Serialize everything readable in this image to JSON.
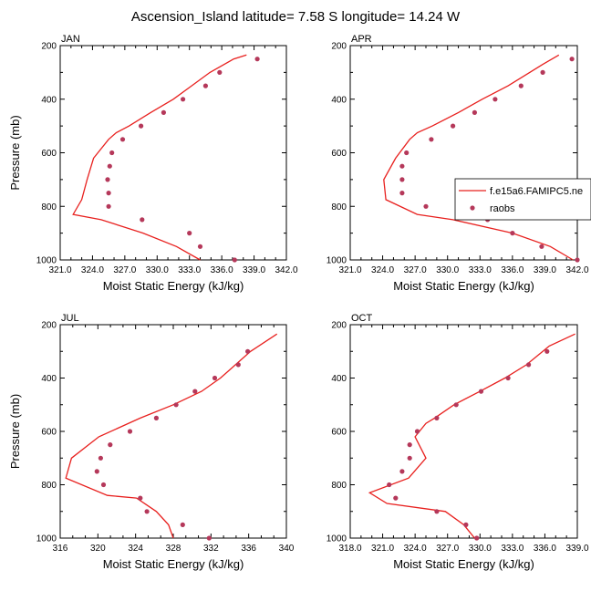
{
  "page": {
    "title": "Ascension_Island  latitude= 7.58 S longitude= 14.24 W"
  },
  "legend": {
    "model_label": "f.e15a6.FAMIPC5.ne",
    "obs_label": "raobs",
    "model_color": "#e8201e",
    "obs_color": "#b5385a"
  },
  "chart_data": [
    {
      "type": "line",
      "panel": "JAN",
      "xlabel": "Moist Static Energy (kJ/kg)",
      "ylabel": "Pressure (mb)",
      "xlim": [
        321.0,
        342.0
      ],
      "ylim": [
        200,
        1000
      ],
      "y_axis": "reversed",
      "x_ticks": [
        "321.0",
        "324.0",
        "327.0",
        "330.0",
        "333.0",
        "336.0",
        "339.0",
        "342.0"
      ],
      "y_ticks": [
        "200",
        "400",
        "600",
        "800",
        "1000"
      ],
      "model": {
        "p": [
          1000,
          950,
          900,
          850,
          830,
          775,
          700,
          620,
          550,
          525,
          500,
          450,
          400,
          350,
          300,
          250,
          235
        ],
        "mse": [
          334.0,
          331.8,
          328.7,
          324.8,
          322.2,
          323.0,
          323.5,
          324.1,
          325.5,
          326.2,
          327.4,
          329.4,
          331.5,
          333.2,
          334.9,
          337.1,
          338.3
        ]
      },
      "raobs": {
        "p": [
          1000,
          950,
          900,
          850,
          800,
          750,
          700,
          650,
          600,
          550,
          500,
          450,
          400,
          350,
          300,
          250
        ],
        "mse": [
          337.2,
          334.0,
          333.0,
          328.6,
          325.5,
          325.5,
          325.4,
          325.6,
          325.8,
          326.8,
          328.5,
          330.6,
          332.4,
          334.5,
          335.8,
          339.3
        ]
      }
    },
    {
      "type": "line",
      "panel": "APR",
      "xlabel": "Moist Static Energy (kJ/kg)",
      "ylabel": "",
      "xlim": [
        321.0,
        342.0
      ],
      "ylim": [
        200,
        1000
      ],
      "y_axis": "reversed",
      "x_ticks": [
        "321.0",
        "324.0",
        "327.0",
        "330.0",
        "333.0",
        "336.0",
        "339.0",
        "342.0"
      ],
      "y_ticks": [
        "200",
        "400",
        "600",
        "800",
        "1000"
      ],
      "model": {
        "p": [
          1000,
          950,
          900,
          850,
          830,
          775,
          700,
          620,
          550,
          525,
          500,
          450,
          400,
          350,
          300,
          270,
          235
        ],
        "mse": [
          341.6,
          339.5,
          336.0,
          330.5,
          327.2,
          324.3,
          324.1,
          325.2,
          326.5,
          327.2,
          328.6,
          331.0,
          333.2,
          335.6,
          337.6,
          338.8,
          340.3
        ]
      },
      "raobs": {
        "p": [
          1000,
          950,
          900,
          850,
          800,
          750,
          700,
          650,
          600,
          550,
          500,
          450,
          400,
          350,
          300,
          250
        ],
        "mse": [
          342.0,
          338.7,
          336.0,
          333.7,
          328.0,
          325.8,
          325.8,
          325.8,
          326.2,
          328.5,
          330.5,
          332.5,
          334.4,
          336.8,
          338.8,
          341.5
        ]
      }
    },
    {
      "type": "line",
      "panel": "JUL",
      "xlabel": "Moist Static Energy (kJ/kg)",
      "ylabel": "Pressure (mb)",
      "xlim": [
        316,
        340
      ],
      "ylim": [
        200,
        1000
      ],
      "y_axis": "reversed",
      "x_ticks": [
        "316",
        "320",
        "324",
        "328",
        "332",
        "336",
        "340"
      ],
      "y_ticks": [
        "200",
        "400",
        "600",
        "800",
        "1000"
      ],
      "model": {
        "p": [
          1000,
          980,
          950,
          900,
          850,
          840,
          775,
          700,
          620,
          550,
          500,
          450,
          400,
          350,
          300,
          235
        ],
        "mse": [
          328.0,
          327.8,
          327.5,
          326.2,
          324.1,
          321.0,
          316.6,
          317.2,
          320.1,
          324.5,
          328.0,
          331.0,
          333.0,
          334.6,
          336.2,
          339.0
        ]
      },
      "raobs": {
        "p": [
          1000,
          950,
          900,
          850,
          800,
          750,
          700,
          650,
          600,
          550,
          500,
          450,
          400,
          350,
          300
        ],
        "mse": [
          331.8,
          329.0,
          325.2,
          324.5,
          320.6,
          319.9,
          320.3,
          321.3,
          323.4,
          326.2,
          328.3,
          330.3,
          332.4,
          334.9,
          335.9
        ]
      }
    },
    {
      "type": "line",
      "panel": "OCT",
      "xlabel": "Moist Static Energy (kJ/kg)",
      "ylabel": "",
      "xlim": [
        318.0,
        339.0
      ],
      "ylim": [
        200,
        1000
      ],
      "y_axis": "reversed",
      "x_ticks": [
        "318.0",
        "321.0",
        "324.0",
        "327.0",
        "330.0",
        "333.0",
        "336.0",
        "339.0"
      ],
      "y_ticks": [
        "200",
        "400",
        "600",
        "800",
        "1000"
      ],
      "model": {
        "p": [
          1000,
          950,
          900,
          870,
          830,
          775,
          700,
          620,
          570,
          550,
          500,
          450,
          400,
          350,
          300,
          280,
          235
        ],
        "mse": [
          329.5,
          328.5,
          326.8,
          321.4,
          319.8,
          323.4,
          325.0,
          324.0,
          325.0,
          325.8,
          327.6,
          330.0,
          332.3,
          334.3,
          335.8,
          336.4,
          338.8
        ]
      },
      "raobs": {
        "p": [
          1000,
          950,
          900,
          850,
          800,
          750,
          700,
          650,
          600,
          550,
          500,
          450,
          400,
          350,
          300
        ],
        "mse": [
          329.7,
          328.7,
          326.0,
          322.2,
          321.6,
          322.8,
          323.5,
          323.5,
          324.2,
          326.0,
          327.8,
          330.1,
          332.6,
          334.5,
          336.2
        ]
      }
    }
  ]
}
